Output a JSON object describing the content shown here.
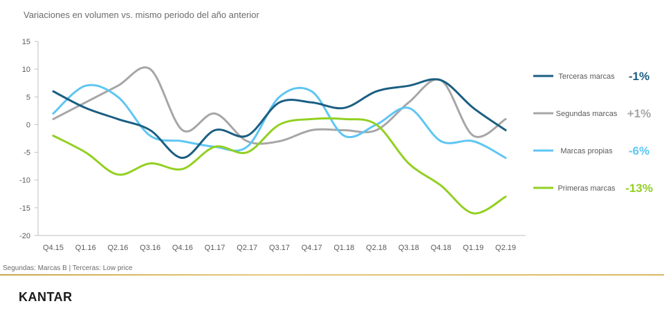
{
  "chart_data": {
    "type": "line",
    "title": "Variaciones en volumen  vs. mismo periodo del año anterior",
    "categories": [
      "Q4.15",
      "Q1.16",
      "Q2.16",
      "Q3.16",
      "Q4.16",
      "Q1.17",
      "Q2.17",
      "Q3.17",
      "Q4.17",
      "Q1.18",
      "Q2.18",
      "Q3.18",
      "Q4.18",
      "Q1.19",
      "Q2.19"
    ],
    "ylim": [
      -20,
      15
    ],
    "yticks": [
      15,
      10,
      5,
      0,
      -5,
      -10,
      -15,
      -20
    ],
    "legend_position": "right",
    "series": [
      {
        "name": "Terceras marcas",
        "color": "#1b5e82",
        "summary": "-1%",
        "values": [
          6,
          3,
          1,
          -1,
          -6,
          -1,
          -2,
          4,
          4,
          3,
          6,
          7,
          8,
          3,
          -1
        ]
      },
      {
        "name": "Segundas marcas",
        "color": "#a6a6a6",
        "summary": "+1%",
        "values": [
          1,
          4,
          7,
          10,
          -1,
          2,
          -3,
          -3,
          -1,
          -1,
          -1,
          4,
          8,
          -2,
          1
        ]
      },
      {
        "name": "Marcas propias",
        "color": "#5ec6f2",
        "summary": "-6%",
        "values": [
          2,
          7,
          5,
          -2,
          -3,
          -4,
          -4,
          5,
          6,
          -2,
          0,
          3,
          -3,
          -3,
          -6
        ]
      },
      {
        "name": "Primeras marcas",
        "color": "#92d021",
        "summary": "-13%",
        "values": [
          -2,
          -5,
          -9,
          -7,
          -8,
          -4,
          -5,
          0,
          1,
          1,
          0,
          -7,
          -11,
          -16,
          -13
        ]
      }
    ]
  },
  "footnote": "Segundas: Marcas B | Terceras: Low price",
  "brand": "KANTAR",
  "colors": {
    "accent_line": "#d9b860"
  }
}
